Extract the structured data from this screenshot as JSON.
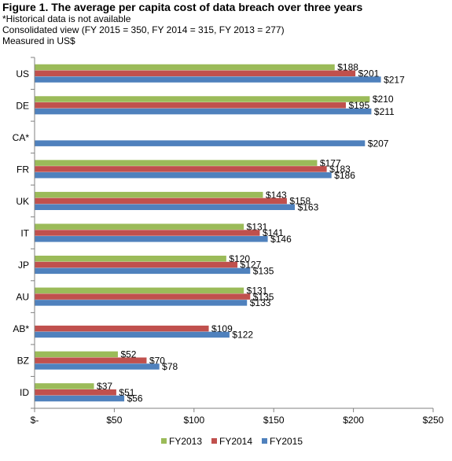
{
  "header": {
    "title": "Figure 1. The average per capita cost of data breach over three years",
    "note": "*Historical data is not available",
    "consolidated": "Consolidated view (FY 2015 = 350, FY 2014 = 315, FY 2013 = 277)",
    "measured": "Measured in US$"
  },
  "chart_data": {
    "type": "bar",
    "orientation": "horizontal",
    "categories": [
      "US",
      "DE",
      "CA*",
      "FR",
      "UK",
      "IT",
      "JP",
      "AU",
      "AB*",
      "BZ",
      "ID"
    ],
    "series": [
      {
        "name": "FY2013",
        "color": "#9bbb59",
        "values": [
          188,
          210,
          null,
          177,
          143,
          131,
          120,
          131,
          null,
          52,
          37
        ]
      },
      {
        "name": "FY2014",
        "color": "#c0504d",
        "values": [
          201,
          195,
          null,
          183,
          158,
          141,
          127,
          135,
          109,
          70,
          51
        ]
      },
      {
        "name": "FY2015",
        "color": "#4f81bd",
        "values": [
          217,
          211,
          207,
          186,
          163,
          146,
          135,
          133,
          122,
          78,
          56
        ]
      }
    ],
    "xlim": [
      0,
      250
    ],
    "xticks": [
      0,
      50,
      100,
      150,
      200,
      250
    ],
    "xtick_labels": [
      "$-",
      "$50",
      "$100",
      "$150",
      "$200",
      "$250"
    ],
    "value_prefix": "$",
    "legend_position": "bottom"
  }
}
